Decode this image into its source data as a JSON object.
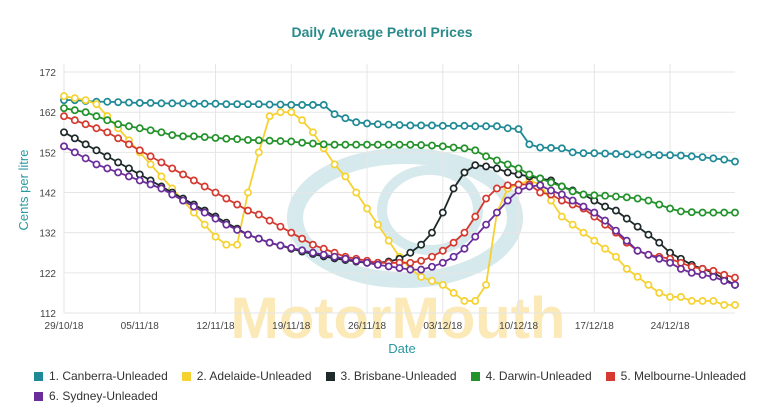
{
  "chart_data": {
    "type": "line",
    "title": "Daily Average Petrol Prices",
    "xlabel": "Date",
    "ylabel": "Cents per litre",
    "watermark": "MotorMouth",
    "x_tick_labels": [
      "29/10/18",
      "05/11/18",
      "12/11/18",
      "19/11/18",
      "26/11/18",
      "03/12/18",
      "10/12/18",
      "17/12/18",
      "24/12/18"
    ],
    "y_ticks": [
      112,
      122,
      132,
      142,
      152,
      162,
      172
    ],
    "ylim": [
      112,
      174
    ],
    "days": 62,
    "grid": true,
    "legend_position": "bottom",
    "colors": {
      "title": "#2a8a8a",
      "axis_label": "#2a9aa0",
      "grid": "#e6e6e6",
      "tick_text": "#444444",
      "watermark_text": "#fbe7b0",
      "watermark_ring": "#d6e9ec"
    },
    "series": [
      {
        "name": "1. Canberra-Unleaded",
        "color": "#1f8a96",
        "values": [
          165.0,
          165.0,
          164.8,
          164.6,
          164.6,
          164.5,
          164.4,
          164.3,
          164.3,
          164.2,
          164.2,
          164.2,
          164.1,
          164.1,
          164.1,
          164.0,
          164.0,
          164.0,
          164.0,
          163.9,
          163.9,
          163.8,
          163.8,
          163.8,
          163.8,
          161.5,
          160.5,
          159.5,
          159.2,
          159.0,
          158.9,
          158.8,
          158.7,
          158.7,
          158.7,
          158.6,
          158.6,
          158.6,
          158.5,
          158.5,
          158.5,
          158.0,
          157.8,
          154.0,
          153.2,
          153.1,
          153.0,
          152.0,
          151.8,
          151.8,
          151.7,
          151.6,
          151.5,
          151.5,
          151.4,
          151.3,
          151.3,
          151.2,
          151.0,
          150.8,
          150.5,
          150.2,
          149.7
        ]
      },
      {
        "name": "2. Adelaide-Unleaded",
        "color": "#f5d232",
        "values": [
          166.0,
          165.5,
          165.0,
          164.0,
          161.0,
          158.0,
          155.0,
          152.0,
          149.0,
          146.0,
          143.0,
          140.0,
          137.0,
          134.0,
          131.0,
          129.0,
          129.0,
          142.0,
          152.0,
          161.0,
          162.0,
          162.0,
          160.0,
          157.0,
          153.0,
          149.0,
          146.0,
          142.0,
          138.0,
          134.0,
          130.0,
          126.0,
          123.0,
          121.0,
          120.0,
          119.0,
          117.0,
          115.0,
          115.0,
          119.0,
          137.0,
          143.0,
          144.0,
          145.0,
          144.0,
          140.0,
          136.0,
          134.0,
          132.0,
          130.0,
          128.0,
          126.0,
          123.0,
          121.0,
          119.0,
          117.0,
          116.0,
          116.0,
          115.0,
          115.0,
          115.0,
          114.0,
          114.0
        ]
      },
      {
        "name": "3. Brisbane-Unleaded",
        "color": "#1e2a2a",
        "values": [
          157.0,
          155.5,
          154.0,
          152.5,
          151.0,
          149.5,
          148.0,
          146.5,
          145.0,
          143.5,
          142.0,
          140.5,
          139.0,
          137.5,
          136.0,
          134.5,
          133.0,
          131.5,
          130.5,
          129.5,
          128.8,
          128.0,
          127.3,
          126.7,
          126.1,
          125.6,
          125.2,
          124.8,
          124.5,
          124.5,
          124.8,
          125.5,
          127.0,
          129.0,
          132.0,
          137.0,
          143.0,
          147.0,
          148.8,
          148.5,
          148.0,
          147.0,
          146.5,
          146.0,
          145.5,
          145.0,
          143.5,
          142.5,
          141.5,
          140.0,
          138.5,
          137.5,
          135.5,
          133.5,
          131.5,
          129.5,
          127.0,
          125.5,
          124.0,
          123.0,
          122.0,
          120.5,
          119.0
        ]
      },
      {
        "name": "4. Darwin-Unleaded",
        "color": "#22922a",
        "values": [
          163.0,
          162.5,
          162.0,
          161.0,
          160.0,
          159.0,
          158.5,
          158.0,
          157.5,
          157.0,
          156.3,
          156.0,
          156.0,
          155.8,
          155.6,
          155.4,
          155.3,
          155.1,
          155.0,
          154.9,
          154.8,
          154.7,
          154.4,
          154.2,
          154.0,
          153.9,
          153.9,
          153.9,
          153.9,
          153.9,
          153.9,
          153.9,
          153.9,
          153.8,
          153.7,
          153.5,
          153.2,
          153.0,
          152.5,
          151.0,
          150.0,
          149.0,
          148.0,
          146.5,
          145.5,
          144.5,
          143.5,
          142.3,
          141.5,
          141.3,
          141.2,
          141.0,
          140.8,
          140.5,
          140.0,
          139.0,
          138.0,
          137.3,
          137.1,
          137.0,
          137.0,
          137.0,
          137.0
        ]
      },
      {
        "name": "5. Melbourne-Unleaded",
        "color": "#d43a30",
        "values": [
          161.0,
          160.0,
          159.0,
          158.0,
          157.0,
          155.5,
          154.0,
          152.5,
          151.0,
          149.5,
          148.0,
          146.5,
          145.0,
          143.5,
          142.0,
          140.5,
          139.0,
          137.5,
          136.5,
          135.0,
          133.5,
          132.0,
          130.5,
          129.0,
          128.0,
          127.0,
          126.0,
          125.5,
          125.0,
          124.5,
          124.5,
          124.5,
          124.5,
          125.0,
          126.0,
          127.5,
          129.5,
          132.0,
          136.0,
          140.5,
          143.0,
          143.8,
          144.0,
          144.0,
          142.0,
          141.5,
          140.0,
          139.0,
          138.0,
          136.0,
          134.0,
          132.0,
          129.5,
          127.5,
          126.5,
          126.0,
          125.5,
          124.5,
          123.5,
          123.0,
          122.5,
          121.5,
          120.8
        ]
      },
      {
        "name": "6. Sydney-Unleaded",
        "color": "#6a2d9a",
        "values": [
          153.5,
          152.0,
          150.5,
          149.0,
          148.0,
          147.0,
          146.0,
          145.0,
          144.0,
          143.0,
          141.5,
          140.0,
          138.5,
          137.0,
          135.5,
          134.0,
          132.7,
          131.5,
          130.5,
          129.5,
          128.8,
          128.2,
          127.6,
          127.0,
          126.5,
          126.0,
          125.5,
          125.0,
          124.5,
          124.0,
          123.6,
          123.2,
          122.8,
          122.8,
          123.5,
          124.5,
          126.0,
          128.0,
          131.0,
          134.0,
          137.0,
          140.0,
          142.5,
          143.5,
          143.8,
          142.5,
          141.5,
          140.0,
          138.5,
          137.0,
          135.0,
          132.5,
          130.0,
          127.5,
          126.5,
          125.5,
          124.5,
          123.0,
          122.0,
          121.5,
          121.0,
          120.0,
          119.0
        ]
      }
    ]
  }
}
